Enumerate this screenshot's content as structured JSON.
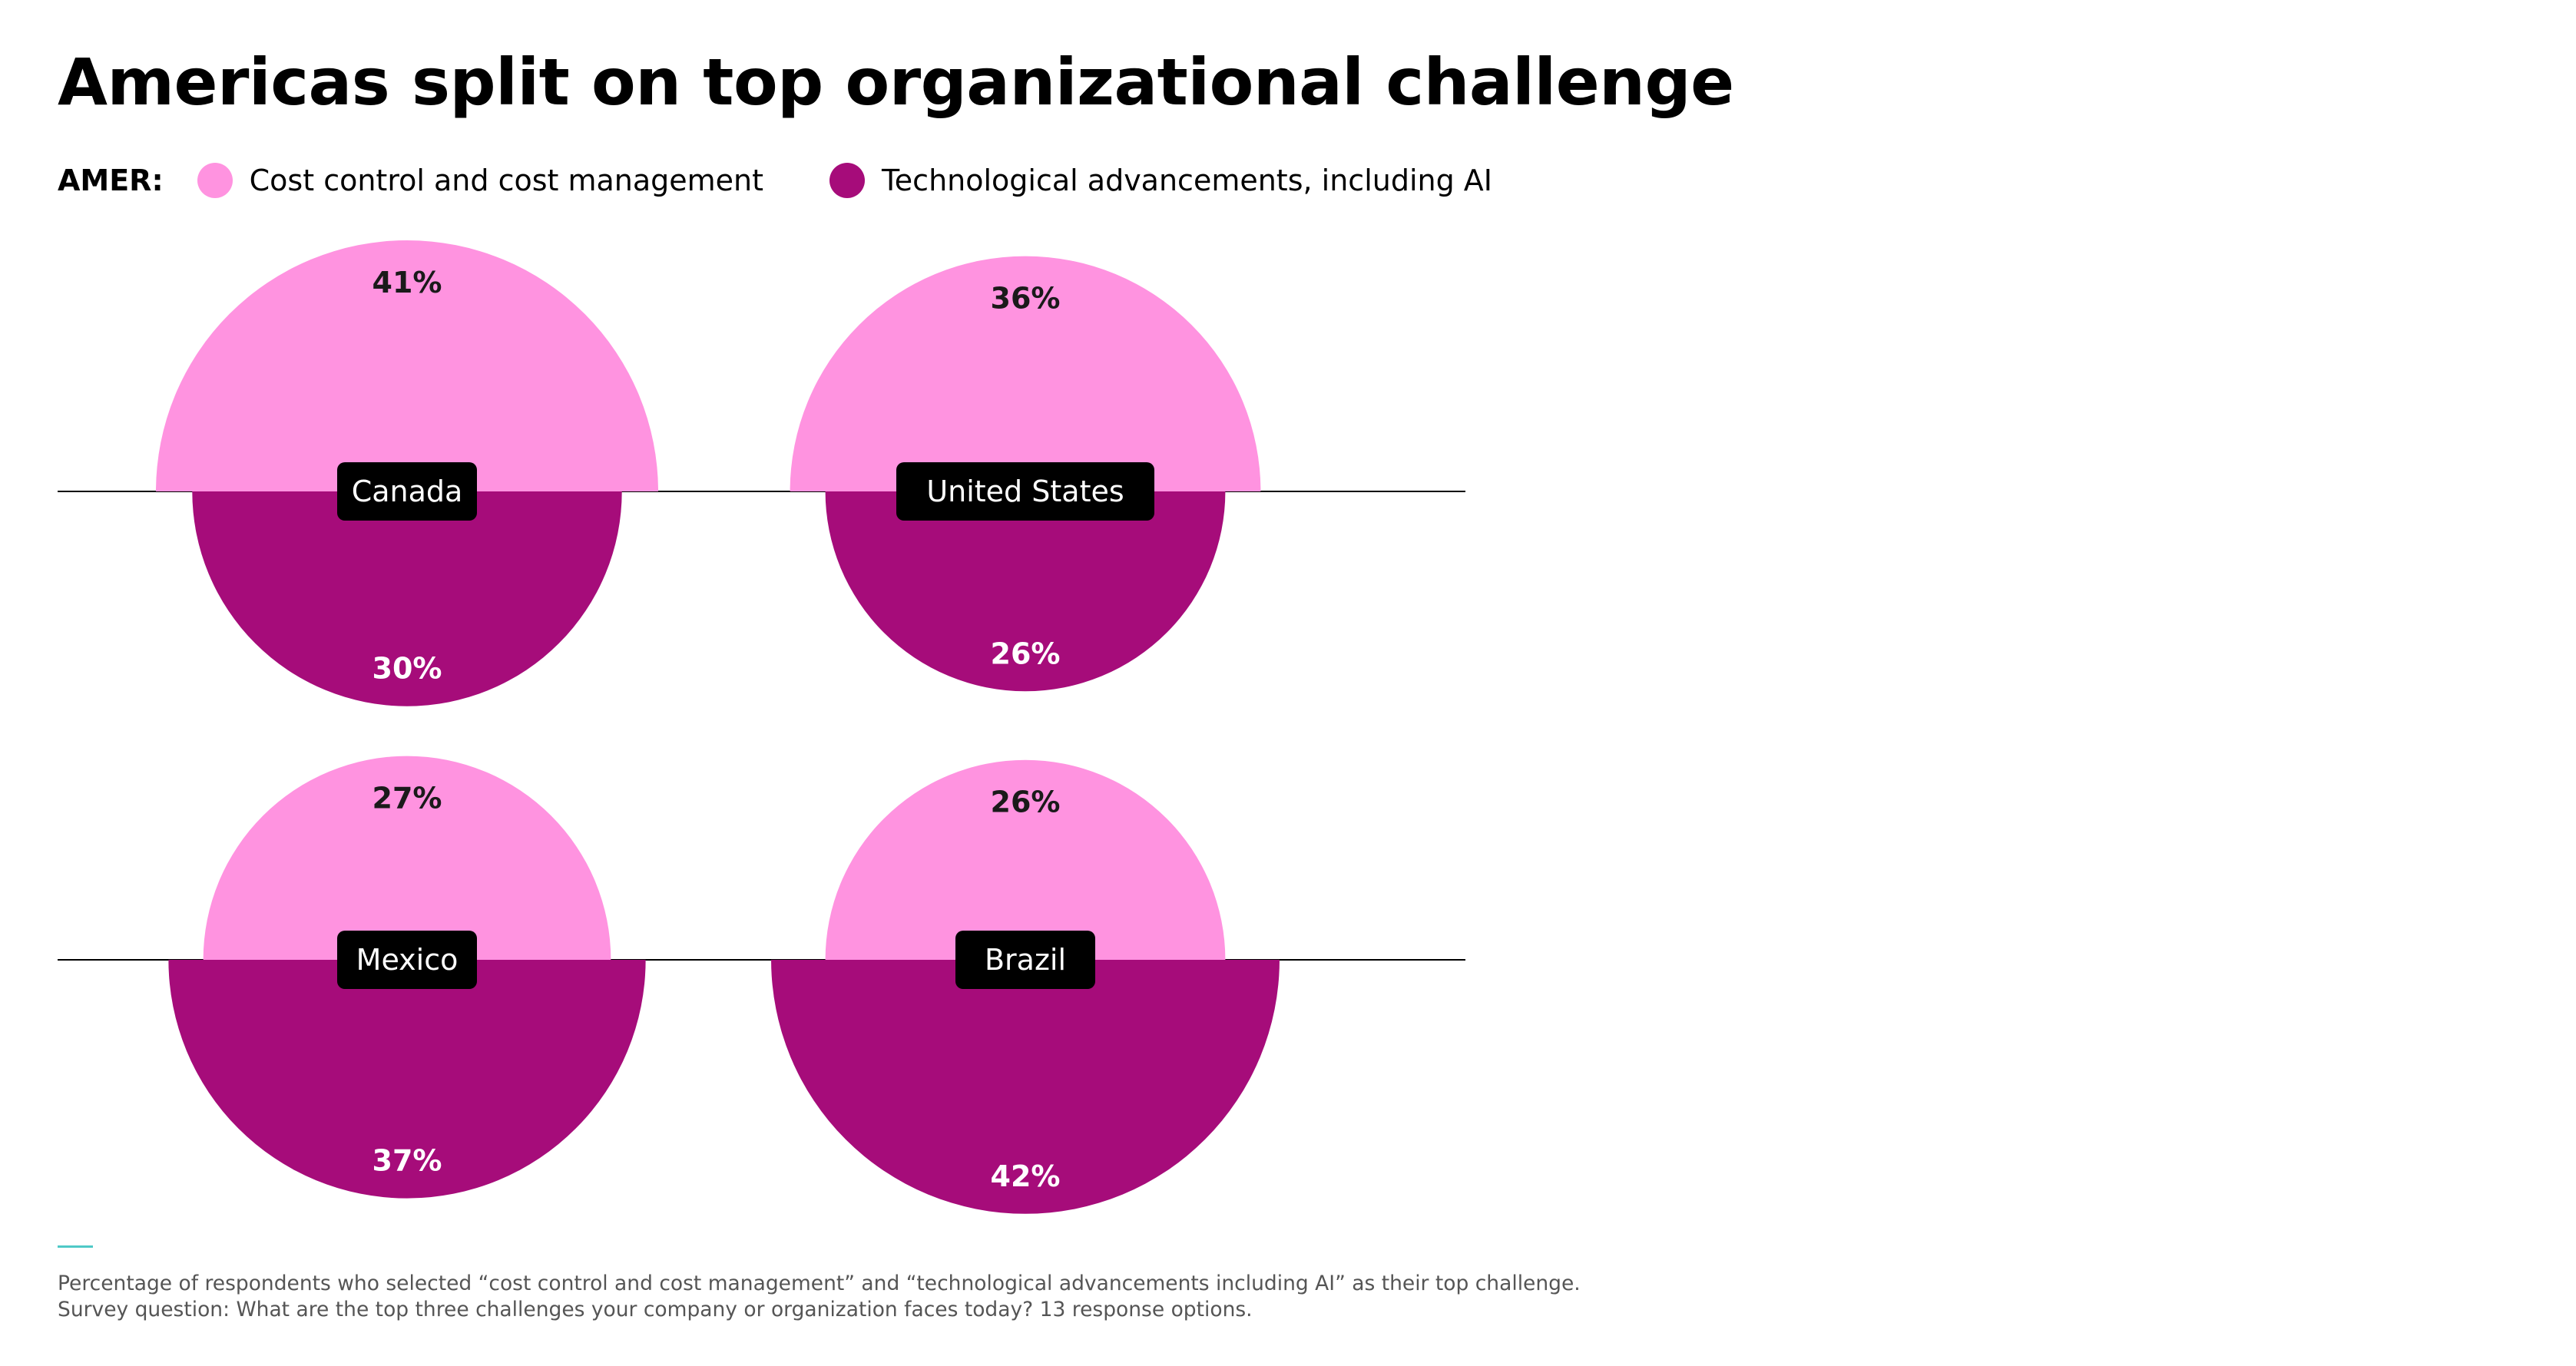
{
  "title": "Americas split on top organizational challenge",
  "legend": {
    "prefix": "AMER:",
    "items": [
      {
        "label": "Cost control and cost management",
        "color": "#ff93e0"
      },
      {
        "label": "Technological advancements, including AI",
        "color": "#a60c7a"
      }
    ]
  },
  "chart_data": {
    "type": "semicircle-comparison",
    "series": [
      {
        "name": "Cost control and cost management",
        "color": "#ff93e0"
      },
      {
        "name": "Technological advancements, including AI",
        "color": "#a60c7a"
      }
    ],
    "categories": [
      "Canada",
      "United States",
      "Mexico",
      "Brazil"
    ],
    "values": {
      "Cost control and cost management": [
        41,
        36,
        27,
        26
      ],
      "Technological advancements, including AI": [
        30,
        26,
        37,
        42
      ]
    },
    "value_suffix": "%"
  },
  "footnote": {
    "line1": "Percentage of respondents who selected “cost control and cost management” and “technological advancements including AI” as their top challenge.",
    "line2": "Survey question: What are the top three challenges your company or organization faces today? 13 response options."
  }
}
